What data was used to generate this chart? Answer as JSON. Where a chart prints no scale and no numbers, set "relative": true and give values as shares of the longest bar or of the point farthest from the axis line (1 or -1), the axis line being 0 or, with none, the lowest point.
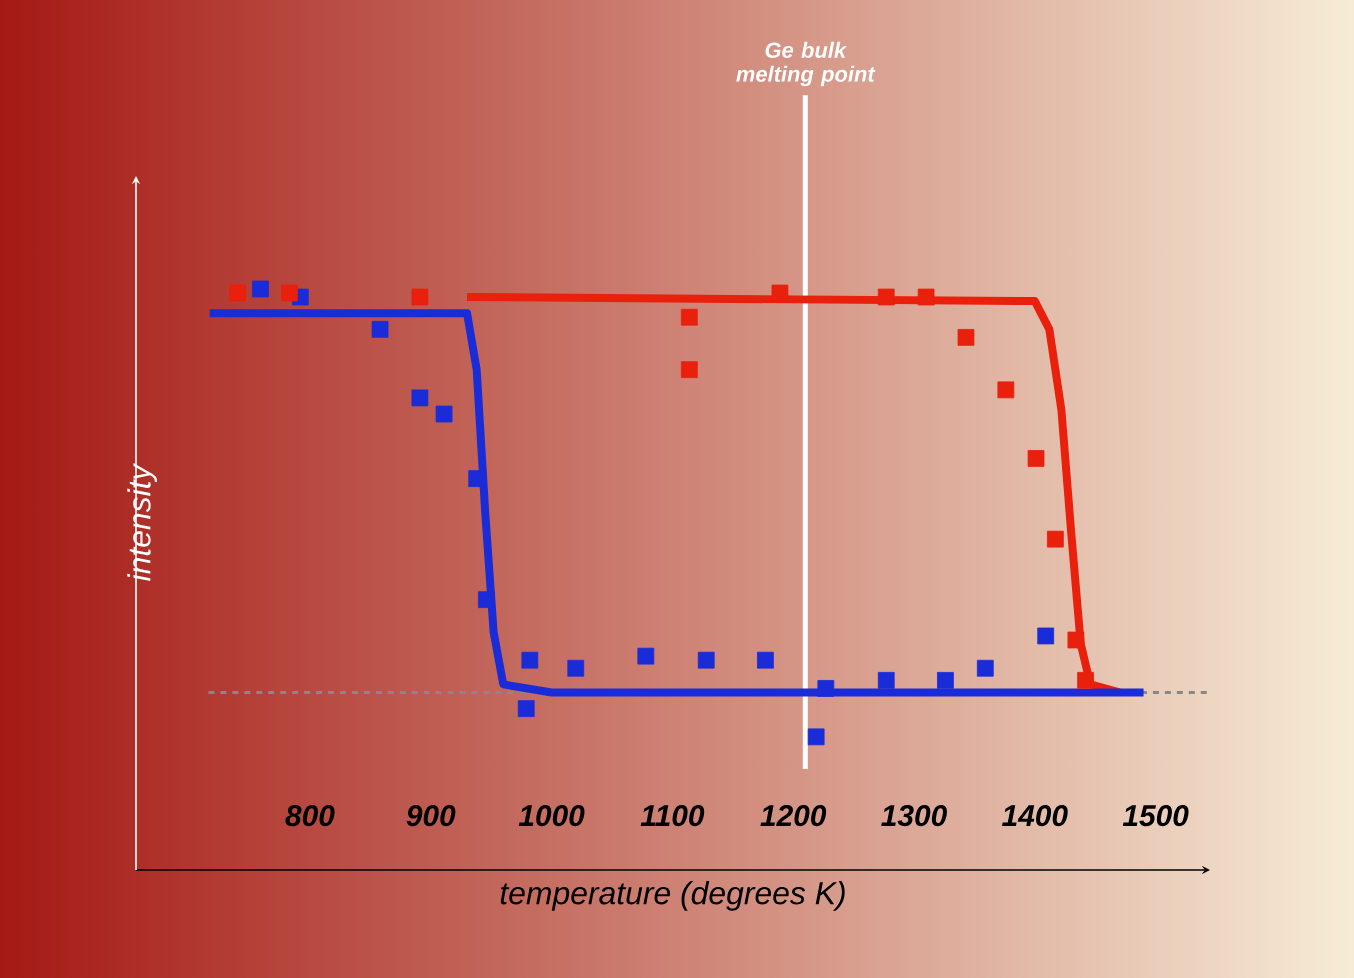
{
  "chart_data": {
    "type": "scatter",
    "relative": true,
    "xlabel": "temperature (degrees K)",
    "ylabel": "intensity",
    "xlim": [
      656,
      1545
    ],
    "xticks": [
      800,
      900,
      1000,
      1100,
      1200,
      1300,
      1400,
      1500
    ],
    "series": [
      {
        "type": "line",
        "color": "#e8200c",
        "x": [
          930,
          1400,
          1412,
          1422,
          1430,
          1438,
          1446,
          1470
        ],
        "values": [
          0.98,
          0.97,
          0.9,
          0.7,
          0.4,
          0.12,
          0.02,
          0
        ]
      },
      {
        "type": "line",
        "color": "#1a2cd8",
        "x": [
          717,
          930,
          938,
          945,
          952,
          960,
          1000,
          1490
        ],
        "values": [
          0.94,
          0.94,
          0.8,
          0.45,
          0.15,
          0.02,
          0,
          0
        ]
      },
      {
        "marker": "square",
        "color": "#1a2cd8",
        "x": [
          759,
          792,
          858,
          891,
          911,
          938,
          946,
          982,
          1020,
          1078,
          1128,
          1177,
          1227,
          1277,
          1326,
          1359,
          1409,
          979,
          1219
        ],
        "values": [
          1,
          0.98,
          0.9,
          0.73,
          0.69,
          0.53,
          0.23,
          0.08,
          0.06,
          0.09,
          0.08,
          0.08,
          0.01,
          0.03,
          0.03,
          0.06,
          0.14,
          -0.04,
          -0.11
        ]
      },
      {
        "marker": "square",
        "color": "#e8200c",
        "x": [
          740,
          783,
          891,
          1114,
          1189,
          1114,
          1277,
          1310,
          1343,
          1376,
          1401,
          1417,
          1434,
          1442
        ],
        "values": [
          0.99,
          0.99,
          0.98,
          0.93,
          0.99,
          0.8,
          0.98,
          0.98,
          0.88,
          0.75,
          0.58,
          0.38,
          0.13,
          0.03
        ]
      }
    ],
    "ref_lines": [
      {
        "axis": "x",
        "value": 1210,
        "label": "Ge bulk melting point",
        "color": "#ffffff"
      },
      {
        "axis": "y",
        "value": 0,
        "color": "#888888",
        "line_style": "dashed"
      }
    ]
  }
}
